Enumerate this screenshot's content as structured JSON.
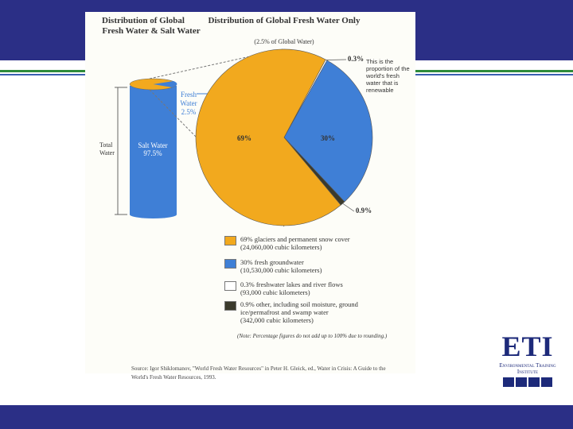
{
  "chart_data": {
    "type": "pie",
    "title": "Distribution of Global Fresh Water Only",
    "subtitle": "(2.5% of Global Water)",
    "categories": [
      "69% glaciers and permanent snow cover",
      "30% fresh groundwater",
      "0.3% freshwater lakes and river flows",
      "0.9% other, including soil moisture, ground ice/permafrost and swamp water"
    ],
    "legend_details": [
      "(24,060,000 cubic kilometers)",
      "(10,530,000 cubic kilometers)",
      "(93,000 cubic kilometers)",
      "(342,000 cubic kilometers)"
    ],
    "values": [
      69,
      30,
      0.3,
      0.9
    ],
    "value_labels": [
      "69%",
      "30%",
      "0.3%",
      "0.9%"
    ],
    "colors": [
      "#f2a91e",
      "#3f7fd6",
      "#ffffff",
      "#3b3a2c"
    ],
    "annotation": "This is the proportion of the world's fresh water that is renewable",
    "note": "(Note: Percentage figures do not add up to 100% due to rounding.)"
  },
  "cylinder": {
    "title": "Distribution of Global Fresh Water & Salt Water",
    "fresh_label": "Fresh Water 2.5%",
    "salt_label": "Salt Water 97.5%",
    "total_label": "Total Water"
  },
  "source": "Source: Igor Shiklomanov, \"World Fresh Water Resources\" in Peter H. Gleick, ed., Water in Crisis: A Guide to the World's Fresh Water Resources, 1993.",
  "logo": {
    "mark": "ETI",
    "name": "Environmental Training Institute"
  }
}
